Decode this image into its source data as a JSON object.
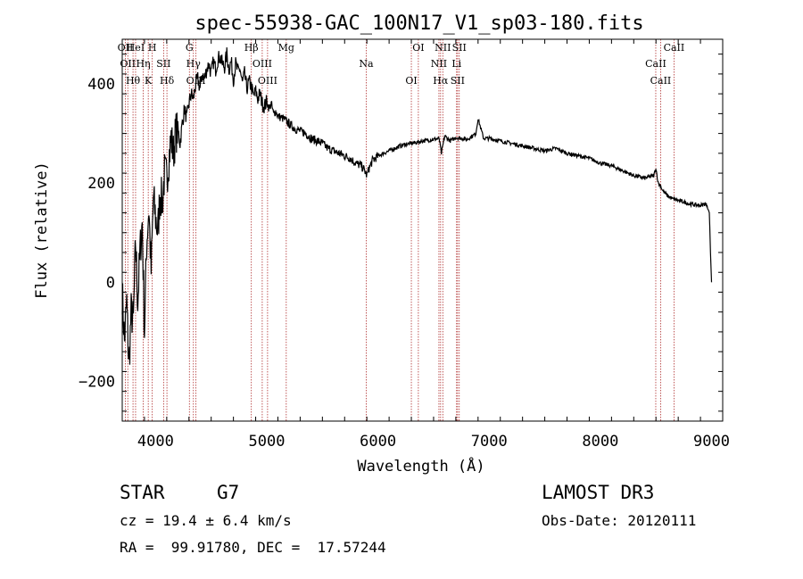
{
  "chart_data": {
    "type": "line",
    "title": "spec-55938-GAC_100N17_V1_sp03-180.fits",
    "xlabel": "Wavelength (Å)",
    "ylabel": "Flux (relative)",
    "xlim": [
      3700,
      9100
    ],
    "ylim": [
      -280,
      490
    ],
    "xticks": [
      4000,
      5000,
      6000,
      7000,
      8000,
      9000
    ],
    "yticks": [
      -200,
      0,
      200,
      400
    ],
    "series": [
      {
        "name": "flux",
        "x": [
          3700,
          3720,
          3740,
          3760,
          3780,
          3800,
          3820,
          3840,
          3860,
          3880,
          3900,
          3920,
          3940,
          3960,
          3980,
          4000,
          4020,
          4040,
          4060,
          4080,
          4100,
          4120,
          4140,
          4160,
          4180,
          4200,
          4220,
          4240,
          4260,
          4280,
          4300,
          4320,
          4340,
          4360,
          4380,
          4400,
          4420,
          4440,
          4460,
          4480,
          4500,
          4520,
          4540,
          4560,
          4580,
          4600,
          4620,
          4640,
          4660,
          4680,
          4700,
          4720,
          4740,
          4760,
          4780,
          4800,
          4820,
          4840,
          4860,
          4880,
          4900,
          4920,
          4940,
          4960,
          4980,
          5000,
          5020,
          5040,
          5060,
          5080,
          5100,
          5150,
          5200,
          5250,
          5300,
          5350,
          5400,
          5450,
          5500,
          5550,
          5600,
          5650,
          5700,
          5750,
          5800,
          5850,
          5880,
          5900,
          5920,
          5950,
          6000,
          6050,
          6100,
          6150,
          6200,
          6250,
          6300,
          6350,
          6400,
          6450,
          6500,
          6550,
          6570,
          6600,
          6650,
          6700,
          6750,
          6800,
          6850,
          6880,
          6900,
          6950,
          7000,
          7100,
          7200,
          7300,
          7400,
          7500,
          7600,
          7700,
          7800,
          7900,
          8000,
          8100,
          8200,
          8300,
          8400,
          8480,
          8500,
          8520,
          8540,
          8560,
          8600,
          8650,
          8700,
          8750,
          8800,
          8850,
          8900,
          8940,
          8960,
          8980,
          8990,
          9000
        ],
        "y": [
          -20,
          -120,
          -40,
          -170,
          -60,
          -80,
          80,
          -40,
          60,
          120,
          -100,
          80,
          150,
          20,
          170,
          130,
          100,
          180,
          160,
          220,
          210,
          250,
          290,
          260,
          300,
          310,
          280,
          320,
          350,
          330,
          360,
          380,
          370,
          400,
          410,
          390,
          420,
          410,
          430,
          440,
          420,
          445,
          430,
          450,
          455,
          440,
          435,
          460,
          430,
          445,
          410,
          440,
          425,
          430,
          400,
          420,
          390,
          405,
          395,
          375,
          385,
          370,
          380,
          360,
          355,
          365,
          350,
          360,
          340,
          345,
          335,
          330,
          320,
          310,
          305,
          300,
          290,
          285,
          280,
          270,
          265,
          260,
          255,
          250,
          240,
          235,
          225,
          215,
          230,
          245,
          255,
          260,
          265,
          270,
          275,
          278,
          280,
          282,
          285,
          286,
          288,
          290,
          260,
          295,
          285,
          292,
          290,
          288,
          295,
          300,
          330,
          290,
          290,
          285,
          280,
          275,
          270,
          265,
          270,
          260,
          255,
          250,
          240,
          235,
          225,
          215,
          210,
          215,
          230,
          200,
          195,
          185,
          175,
          168,
          165,
          162,
          158,
          156,
          155,
          158,
          155,
          140,
          60,
          0
        ]
      }
    ],
    "lines": [
      {
        "x": 3728,
        "label": "OII"
      },
      {
        "x": 3750,
        "label": "OII"
      },
      {
        "x": 3797,
        "label": "Hθ"
      },
      {
        "x": 3820,
        "label": "HeI"
      },
      {
        "x": 3889,
        "label": "Hη"
      },
      {
        "x": 3934,
        "label": "K"
      },
      {
        "x": 3970,
        "label": "H"
      },
      {
        "x": 4072,
        "label": "SII"
      },
      {
        "x": 4102,
        "label": "Hδ"
      },
      {
        "x": 4304,
        "label": "G"
      },
      {
        "x": 4340,
        "label": "Hγ"
      },
      {
        "x": 4363,
        "label": "OIII"
      },
      {
        "x": 4861,
        "label": "Hβ"
      },
      {
        "x": 4959,
        "label": "OIII"
      },
      {
        "x": 5007,
        "label": "OIII"
      },
      {
        "x": 5175,
        "label": "Mg"
      },
      {
        "x": 5894,
        "label": "Na"
      },
      {
        "x": 6300,
        "label": "OI"
      },
      {
        "x": 6363,
        "label": "OI"
      },
      {
        "x": 6548,
        "label": "NII"
      },
      {
        "x": 6563,
        "label": "Hα"
      },
      {
        "x": 6583,
        "label": "NII"
      },
      {
        "x": 6707,
        "label": "Li"
      },
      {
        "x": 6716,
        "label": "SII"
      },
      {
        "x": 6731,
        "label": "SII"
      },
      {
        "x": 8498,
        "label": "CaII"
      },
      {
        "x": 8542,
        "label": "CaII"
      },
      {
        "x": 8662,
        "label": "CaII"
      }
    ]
  },
  "info": {
    "class": "STAR",
    "subclass": "G7",
    "survey": "LAMOST DR3",
    "cz": "cz = 19.4 ± 6.4 km/s",
    "obsdate": "Obs-Date: 20120111",
    "radec": "RA =  99.91780, DEC =  17.57244"
  }
}
